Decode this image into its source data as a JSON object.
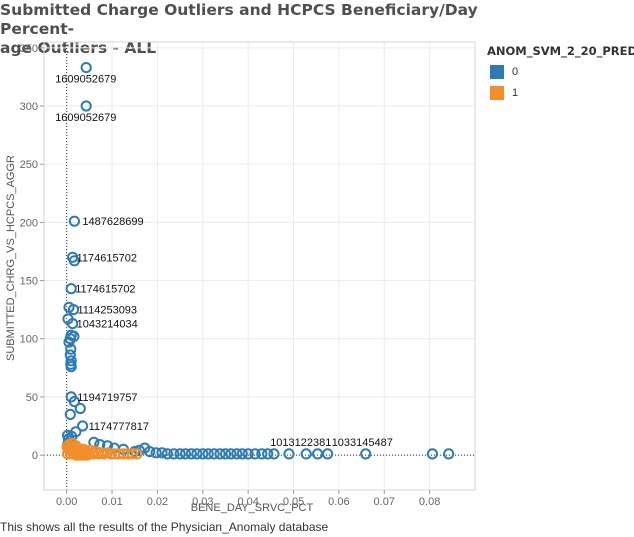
{
  "title": "Submitted Charge Outliers and HCPCS Beneficiary/Day Percentage Outliers - ALL",
  "title_lines": [
    "Submitted Charge Outliers and HCPCS Beneficiary/Day Percent-",
    "age Outliers - ALL"
  ],
  "footer": "This shows all the results of the Physician_Anomaly database",
  "legend": {
    "title": "ANOM_SVM_2_20_PRED",
    "items": [
      {
        "label": "0",
        "color": "#2e7bb4"
      },
      {
        "label": "1",
        "color": "#f28e2b"
      }
    ]
  },
  "chart_data": {
    "type": "scatter",
    "title": "Submitted Charge Outliers and HCPCS Beneficiary/Day Percentage Outliers - ALL",
    "xlabel": "BENE_DAY_SRVC_PCT",
    "ylabel": "SUBMITTED_CHRG_VS_HCPCS_AGGR",
    "xlim": [
      -0.005,
      0.09
    ],
    "ylim": [
      -30,
      355
    ],
    "xticks": [
      "0.00",
      "0.01",
      "0.02",
      "0.03",
      "0.04",
      "0.05",
      "0.06",
      "0.07",
      "0.08"
    ],
    "yticks": [
      "0",
      "50",
      "100",
      "150",
      "200",
      "250",
      "300",
      "350"
    ],
    "grid": true,
    "legend_position": "right",
    "reference_lines": {
      "x": 0,
      "y": 0
    },
    "series": [
      {
        "name": "0",
        "color": "#2e7bb4",
        "points": [
          [
            0.0043,
            333
          ],
          [
            0.0043,
            300
          ],
          [
            0.0017,
            201
          ],
          [
            0.0013,
            170
          ],
          [
            0.0017,
            167
          ],
          [
            0.001,
            143
          ],
          [
            0.0005,
            127
          ],
          [
            0.0015,
            125
          ],
          [
            0.0003,
            117
          ],
          [
            0.0013,
            113
          ],
          [
            0.001,
            103
          ],
          [
            0.0016,
            102
          ],
          [
            0.0008,
            100
          ],
          [
            0.0005,
            97
          ],
          [
            0.0009,
            91
          ],
          [
            0.0008,
            86
          ],
          [
            0.001,
            81
          ],
          [
            0.0009,
            78
          ],
          [
            0.001,
            76
          ],
          [
            0.001,
            50
          ],
          [
            0.0017,
            46
          ],
          [
            0.003,
            40
          ],
          [
            0.0008,
            35
          ],
          [
            0.0035,
            25
          ],
          [
            0.002,
            20
          ],
          [
            0.0002,
            17
          ],
          [
            0.0011,
            16
          ],
          [
            0.0004,
            14
          ],
          [
            0.0007,
            12
          ],
          [
            0.0003,
            10
          ],
          [
            0.006,
            11
          ],
          [
            0.0073,
            9
          ],
          [
            0.009,
            8
          ],
          [
            0.0105,
            6
          ],
          [
            0.0125,
            5
          ],
          [
            0.015,
            3
          ],
          [
            0.016,
            4
          ],
          [
            0.0172,
            6
          ],
          [
            0.0183,
            3
          ],
          [
            0.0197,
            2
          ],
          [
            0.021,
            2
          ],
          [
            0.0222,
            1
          ],
          [
            0.0236,
            1
          ],
          [
            0.025,
            1
          ],
          [
            0.0262,
            1
          ],
          [
            0.0275,
            1
          ],
          [
            0.0287,
            1
          ],
          [
            0.03,
            1
          ],
          [
            0.0312,
            1
          ],
          [
            0.0325,
            1
          ],
          [
            0.0338,
            1
          ],
          [
            0.035,
            1
          ],
          [
            0.0362,
            1
          ],
          [
            0.0375,
            1
          ],
          [
            0.0387,
            1
          ],
          [
            0.04,
            1
          ],
          [
            0.0415,
            1
          ],
          [
            0.043,
            1
          ],
          [
            0.0443,
            1
          ],
          [
            0.0457,
            1
          ],
          [
            0.049,
            1
          ],
          [
            0.0528,
            1
          ],
          [
            0.0553,
            1
          ],
          [
            0.0575,
            1
          ],
          [
            0.0659,
            1
          ],
          [
            0.0806,
            1
          ],
          [
            0.0842,
            1
          ]
        ],
        "labels": [
          {
            "text": "1609052679",
            "x": 0.0043,
            "y": 333
          },
          {
            "text": "1609052679",
            "x": 0.0043,
            "y": 300
          },
          {
            "text": "1487628699",
            "x": 0.0017,
            "y": 201
          },
          {
            "text": "1174615702",
            "x": 0.0013,
            "y": 170
          },
          {
            "text": "1174615702",
            "x": 0.001,
            "y": 143
          },
          {
            "text": "1114253093",
            "x": 0.0015,
            "y": 125
          },
          {
            "text": "1043214034",
            "x": 0.0013,
            "y": 113
          },
          {
            "text": "1194719757",
            "x": 0.001,
            "y": 50
          },
          {
            "text": "1174777817",
            "x": 0.0035,
            "y": 25
          },
          {
            "text": "1013122381",
            "x": 0.0528,
            "y": 1
          },
          {
            "text": "1033145487",
            "x": 0.0659,
            "y": 1
          }
        ]
      },
      {
        "name": "1",
        "color": "#f28e2b",
        "points": [
          [
            0.0001,
            7
          ],
          [
            0.0004,
            5
          ],
          [
            0.0007,
            6
          ],
          [
            0.001,
            4
          ],
          [
            0.0013,
            7
          ],
          [
            0.0016,
            3
          ],
          [
            0.0019,
            5
          ],
          [
            0.0022,
            2
          ],
          [
            0.0025,
            6
          ],
          [
            0.0028,
            3
          ],
          [
            0.0031,
            4
          ],
          [
            0.0034,
            1
          ],
          [
            0.0037,
            5
          ],
          [
            0.004,
            2
          ],
          [
            0.0044,
            3
          ],
          [
            0.0048,
            1
          ],
          [
            0.0052,
            4
          ],
          [
            0.0056,
            2
          ],
          [
            0.006,
            1
          ],
          [
            0.0065,
            3
          ],
          [
            0.007,
            1
          ],
          [
            0.0076,
            2
          ],
          [
            0.0082,
            1
          ],
          [
            0.009,
            2
          ],
          [
            0.0098,
            1
          ],
          [
            0.0106,
            1
          ],
          [
            0.0115,
            1
          ],
          [
            0.0125,
            1
          ],
          [
            0.0135,
            1
          ],
          [
            0.0145,
            1
          ],
          [
            0.0155,
            1
          ],
          [
            0.0002,
            1
          ],
          [
            0.0009,
            1
          ],
          [
            0.0015,
            1
          ],
          [
            0.0021,
            0
          ],
          [
            0.0027,
            0
          ],
          [
            0.0033,
            0
          ],
          [
            0.0039,
            0
          ],
          [
            0.0046,
            0
          ],
          [
            0.0005,
            9
          ],
          [
            0.0012,
            10
          ],
          [
            0.002,
            8
          ]
        ]
      }
    ]
  }
}
